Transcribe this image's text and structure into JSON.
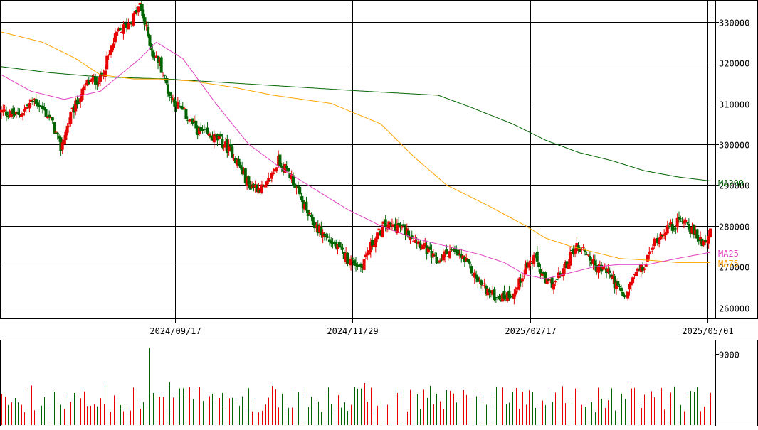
{
  "chart_data": {
    "type": "candlestick",
    "x_tick_labels": [
      "2024/09/17",
      "2024/11/29",
      "2025/02/17",
      "2025/05/01"
    ],
    "y_tick_labels": [
      "330000",
      "320000",
      "310000",
      "300000",
      "290000",
      "280000",
      "270000",
      "260000"
    ],
    "y_ticks": [
      330000,
      320000,
      310000,
      300000,
      290000,
      280000,
      270000,
      260000
    ],
    "ylim": [
      258000,
      335000
    ],
    "ma_labels": [
      "MA25",
      "MA75",
      "MA200"
    ],
    "colors": {
      "up": "#e60000",
      "down": "#006400",
      "ma25": "#e040c0",
      "ma75": "#ffa500",
      "ma200": "#006400"
    },
    "price_keypoints": [
      [
        0,
        308000
      ],
      [
        10,
        307000
      ],
      [
        20,
        311000
      ],
      [
        30,
        306000
      ],
      [
        36,
        299000
      ],
      [
        42,
        307000
      ],
      [
        52,
        315000
      ],
      [
        60,
        316000
      ],
      [
        70,
        327000
      ],
      [
        78,
        330000
      ],
      [
        84,
        334000
      ],
      [
        92,
        322000
      ],
      [
        96,
        320000
      ],
      [
        102,
        312000
      ],
      [
        112,
        307000
      ],
      [
        120,
        303000
      ],
      [
        132,
        301000
      ],
      [
        140,
        298000
      ],
      [
        150,
        290000
      ],
      [
        160,
        289000
      ],
      [
        168,
        296000
      ],
      [
        176,
        292000
      ],
      [
        182,
        286000
      ],
      [
        188,
        281000
      ],
      [
        200,
        276000
      ],
      [
        210,
        272000
      ],
      [
        218,
        270000
      ],
      [
        224,
        275000
      ],
      [
        232,
        280000
      ],
      [
        240,
        280000
      ],
      [
        248,
        278000
      ],
      [
        256,
        275000
      ],
      [
        264,
        271000
      ],
      [
        272,
        274000
      ],
      [
        280,
        272000
      ],
      [
        290,
        266000
      ],
      [
        298,
        263000
      ],
      [
        304,
        262500
      ],
      [
        312,
        264000
      ],
      [
        318,
        270000
      ],
      [
        324,
        272000
      ],
      [
        330,
        266000
      ],
      [
        336,
        266000
      ],
      [
        342,
        270000
      ],
      [
        348,
        275000
      ],
      [
        354,
        274000
      ],
      [
        360,
        270000
      ],
      [
        368,
        269000
      ],
      [
        372,
        266000
      ],
      [
        378,
        262000
      ],
      [
        384,
        268000
      ],
      [
        390,
        270000
      ],
      [
        396,
        276000
      ],
      [
        402,
        279000
      ],
      [
        408,
        280000
      ],
      [
        414,
        282000
      ],
      [
        420,
        278000
      ],
      [
        426,
        276000
      ],
      [
        430,
        278500
      ]
    ],
    "ma25_keypoints": [
      [
        0,
        317000
      ],
      [
        18,
        313000
      ],
      [
        38,
        311000
      ],
      [
        60,
        313000
      ],
      [
        84,
        321000
      ],
      [
        94,
        325000
      ],
      [
        110,
        321000
      ],
      [
        130,
        310000
      ],
      [
        150,
        300000
      ],
      [
        170,
        294000
      ],
      [
        190,
        289000
      ],
      [
        210,
        284000
      ],
      [
        230,
        280000
      ],
      [
        250,
        277000
      ],
      [
        270,
        275000
      ],
      [
        290,
        273000
      ],
      [
        305,
        271000
      ],
      [
        318,
        268000
      ],
      [
        330,
        267000
      ],
      [
        345,
        268500
      ],
      [
        360,
        270000
      ],
      [
        375,
        270500
      ],
      [
        392,
        270500
      ],
      [
        410,
        272000
      ],
      [
        430,
        273500
      ]
    ],
    "ma75_keypoints": [
      [
        0,
        327500
      ],
      [
        25,
        325000
      ],
      [
        45,
        321000
      ],
      [
        60,
        317000
      ],
      [
        80,
        316000
      ],
      [
        95,
        316000
      ],
      [
        115,
        315500
      ],
      [
        140,
        314000
      ],
      [
        165,
        312000
      ],
      [
        200,
        310000
      ],
      [
        230,
        305000
      ],
      [
        250,
        297000
      ],
      [
        270,
        290000
      ],
      [
        295,
        285000
      ],
      [
        318,
        280000
      ],
      [
        330,
        277000
      ],
      [
        345,
        275000
      ],
      [
        360,
        273500
      ],
      [
        375,
        272000
      ],
      [
        395,
        271500
      ],
      [
        410,
        271000
      ],
      [
        430,
        271000
      ]
    ],
    "ma200_keypoints": [
      [
        0,
        319000
      ],
      [
        30,
        317500
      ],
      [
        60,
        316500
      ],
      [
        100,
        316000
      ],
      [
        140,
        315000
      ],
      [
        180,
        314000
      ],
      [
        220,
        313000
      ],
      [
        265,
        312000
      ],
      [
        285,
        309000
      ],
      [
        310,
        305000
      ],
      [
        330,
        301000
      ],
      [
        350,
        298000
      ],
      [
        370,
        296000
      ],
      [
        390,
        293500
      ],
      [
        410,
        292000
      ],
      [
        430,
        291000
      ]
    ],
    "volume_y_tick_label": "9000",
    "volume_ylim": [
      0,
      10500
    ]
  }
}
